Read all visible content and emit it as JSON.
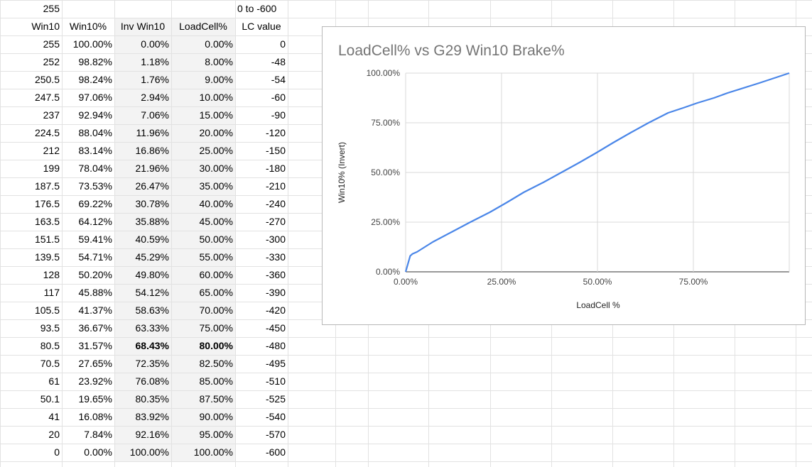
{
  "sheet": {
    "top_left": "255",
    "top_right_note": "0 to -600",
    "headers": [
      "Win10",
      "Win10%",
      "Inv Win10",
      "LoadCell%",
      "LC value"
    ],
    "rows": [
      [
        "255",
        "100.00%",
        "0.00%",
        "0.00%",
        "0"
      ],
      [
        "252",
        "98.82%",
        "1.18%",
        "8.00%",
        "-48"
      ],
      [
        "250.5",
        "98.24%",
        "1.76%",
        "9.00%",
        "-54"
      ],
      [
        "247.5",
        "97.06%",
        "2.94%",
        "10.00%",
        "-60"
      ],
      [
        "237",
        "92.94%",
        "7.06%",
        "15.00%",
        "-90"
      ],
      [
        "224.5",
        "88.04%",
        "11.96%",
        "20.00%",
        "-120"
      ],
      [
        "212",
        "83.14%",
        "16.86%",
        "25.00%",
        "-150"
      ],
      [
        "199",
        "78.04%",
        "21.96%",
        "30.00%",
        "-180"
      ],
      [
        "187.5",
        "73.53%",
        "26.47%",
        "35.00%",
        "-210"
      ],
      [
        "176.5",
        "69.22%",
        "30.78%",
        "40.00%",
        "-240"
      ],
      [
        "163.5",
        "64.12%",
        "35.88%",
        "45.00%",
        "-270"
      ],
      [
        "151.5",
        "59.41%",
        "40.59%",
        "50.00%",
        "-300"
      ],
      [
        "139.5",
        "54.71%",
        "45.29%",
        "55.00%",
        "-330"
      ],
      [
        "128",
        "50.20%",
        "49.80%",
        "60.00%",
        "-360"
      ],
      [
        "117",
        "45.88%",
        "54.12%",
        "65.00%",
        "-390"
      ],
      [
        "105.5",
        "41.37%",
        "58.63%",
        "70.00%",
        "-420"
      ],
      [
        "93.5",
        "36.67%",
        "63.33%",
        "75.00%",
        "-450"
      ],
      [
        "80.5",
        "31.57%",
        "68.43%",
        "80.00%",
        "-480"
      ],
      [
        "70.5",
        "27.65%",
        "72.35%",
        "82.50%",
        "-495"
      ],
      [
        "61",
        "23.92%",
        "76.08%",
        "85.00%",
        "-510"
      ],
      [
        "50.1",
        "19.65%",
        "80.35%",
        "87.50%",
        "-525"
      ],
      [
        "41",
        "16.08%",
        "83.92%",
        "90.00%",
        "-540"
      ],
      [
        "20",
        "7.84%",
        "92.16%",
        "95.00%",
        "-570"
      ],
      [
        "0",
        "0.00%",
        "100.00%",
        "100.00%",
        "-600"
      ]
    ],
    "bold_row_index": 17,
    "bold_columns": [
      2,
      3
    ]
  },
  "chart_data": {
    "type": "line",
    "title": "LoadCell% vs G29 Win10 Brake%",
    "xlabel": "LoadCell %",
    "ylabel": "Win10% (Invert)",
    "x_ticks": [
      "0.00%",
      "25.00%",
      "50.00%",
      "75.00%"
    ],
    "y_ticks": [
      "0.00%",
      "25.00%",
      "50.00%",
      "75.00%",
      "100.00%"
    ],
    "xlim": [
      0,
      100
    ],
    "ylim": [
      0,
      100
    ],
    "grid": true,
    "line_color": "#4a86e8",
    "series": [
      {
        "x": [
          0,
          1.18,
          1.76,
          2.94,
          7.06,
          11.96,
          16.86,
          21.96,
          26.47,
          30.78,
          35.88,
          40.59,
          45.29,
          49.8,
          54.12,
          58.63,
          63.33,
          68.43,
          72.35,
          76.08,
          80.35,
          83.92,
          92.16,
          100
        ],
        "y": [
          0,
          8,
          9,
          10,
          15,
          20,
          25,
          30,
          35,
          40,
          45,
          50,
          55,
          60,
          65,
          70,
          75,
          80,
          82.5,
          85,
          87.5,
          90,
          95,
          100
        ]
      }
    ]
  }
}
